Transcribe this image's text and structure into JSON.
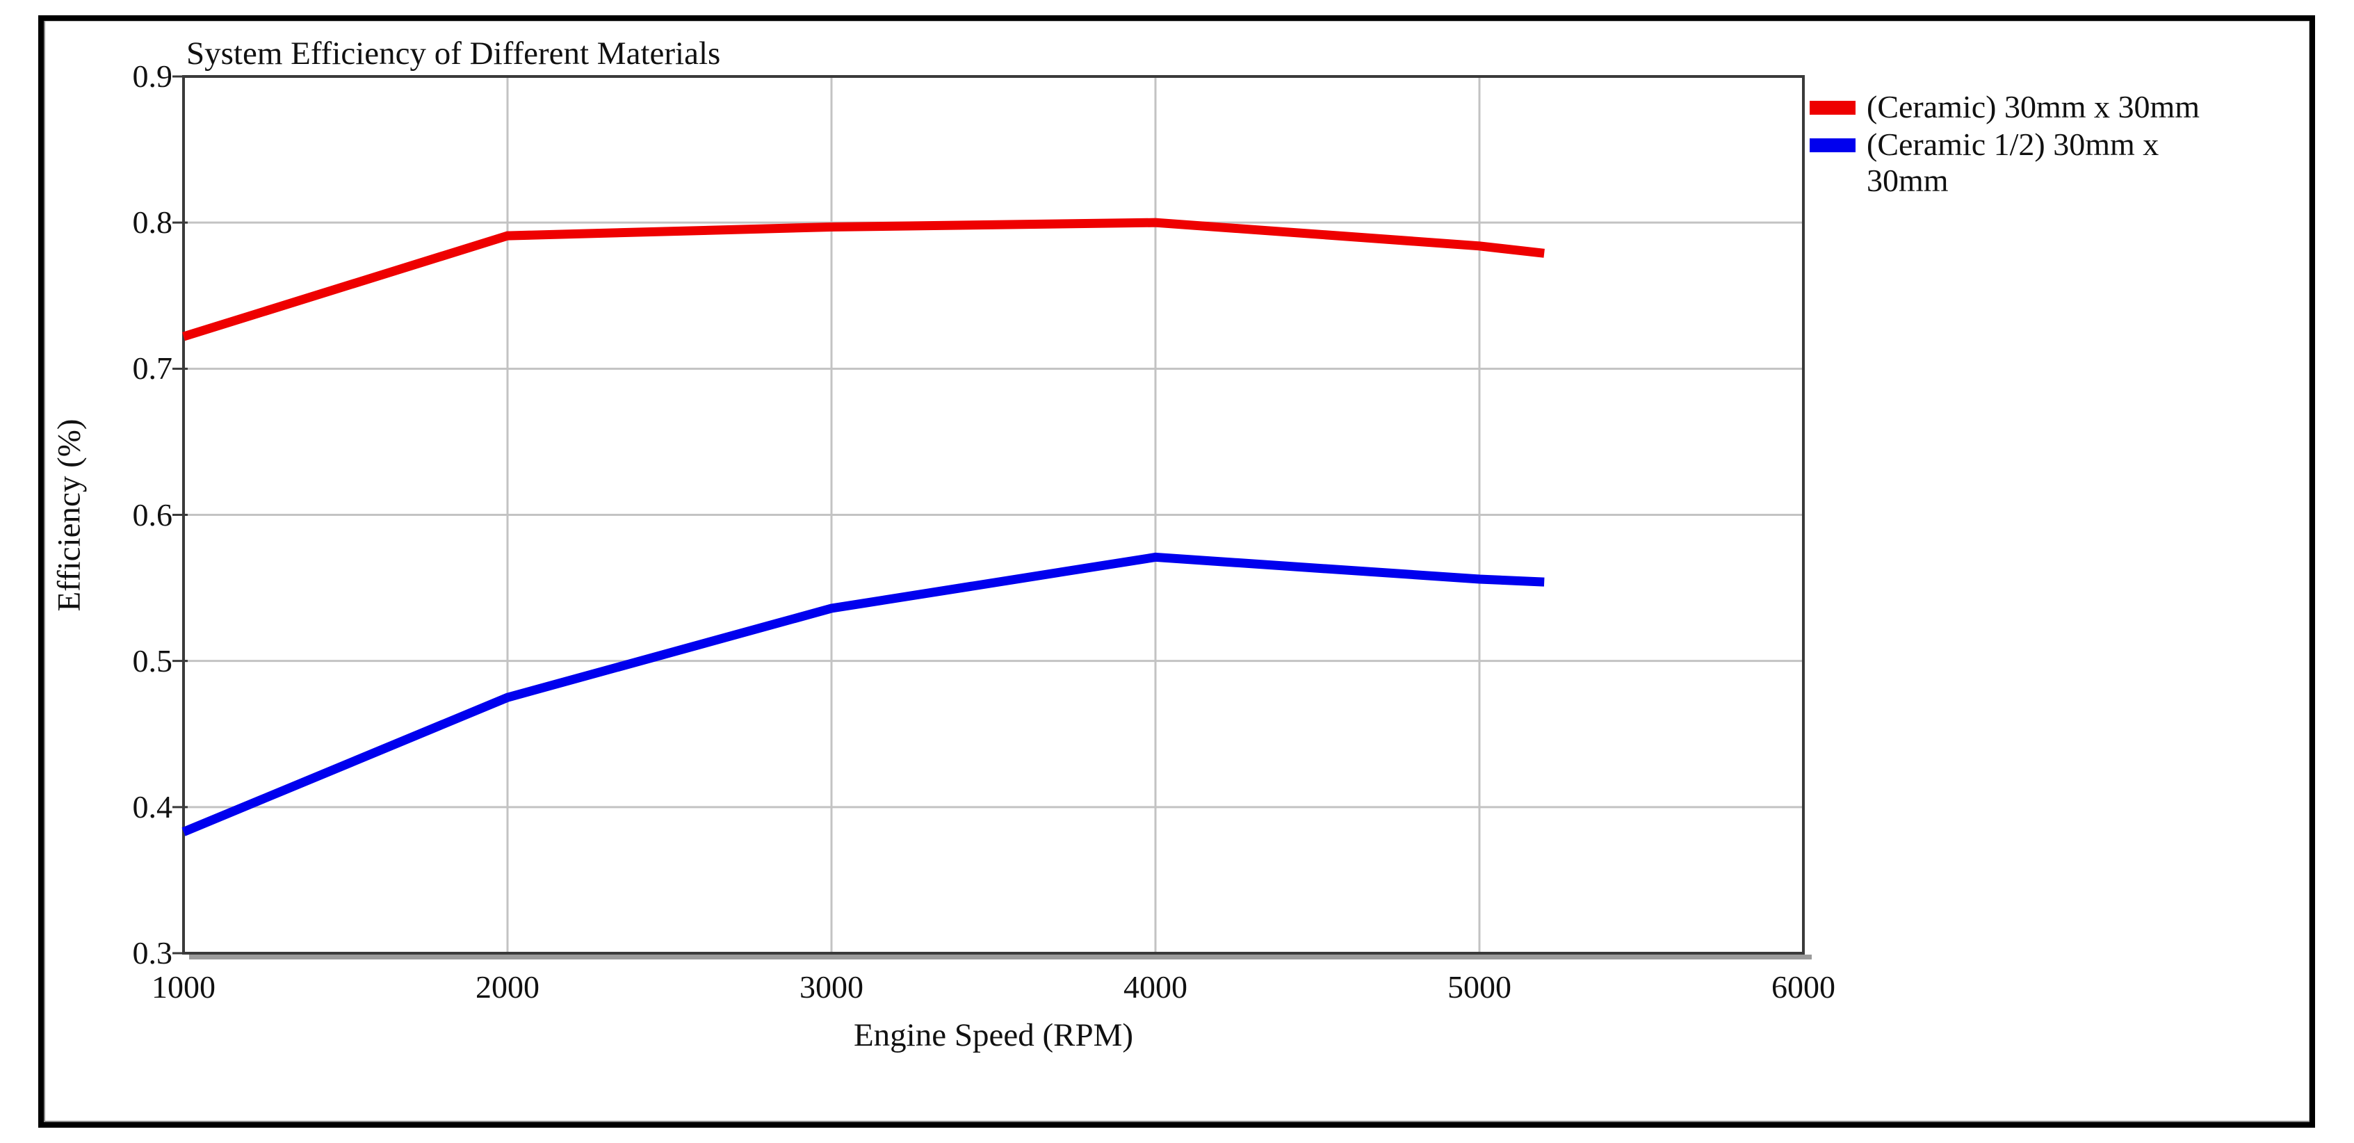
{
  "chart_data": {
    "type": "line",
    "title": "System Efficiency of Different Materials",
    "xlabel": "Engine Speed (RPM)",
    "ylabel": "Efficiency (%)",
    "xlim": [
      1000,
      6000
    ],
    "ylim": [
      0.3,
      0.9
    ],
    "x_ticks": [
      1000,
      2000,
      3000,
      4000,
      5000,
      6000
    ],
    "y_ticks": [
      0.3,
      0.4,
      0.5,
      0.6,
      0.7,
      0.8,
      0.9
    ],
    "grid": true,
    "legend_position": "right",
    "series": [
      {
        "name": "(Ceramic) 30mm x 30mm",
        "color": "#ee0000",
        "x": [
          1000,
          2000,
          3000,
          4000,
          5000,
          5200
        ],
        "y": [
          0.722,
          0.791,
          0.797,
          0.8,
          0.784,
          0.779
        ]
      },
      {
        "name": "(Ceramic 1/2) 30mm x 30mm",
        "color": "#0000ee",
        "x": [
          1000,
          2000,
          3000,
          4000,
          5000,
          5200
        ],
        "y": [
          0.383,
          0.475,
          0.536,
          0.571,
          0.556,
          0.554
        ]
      }
    ],
    "colors": {
      "gridline": "#c3c3c3",
      "frame": "#3a3a3a",
      "shadow": "#9b9b9b",
      "text": "#111111"
    }
  }
}
